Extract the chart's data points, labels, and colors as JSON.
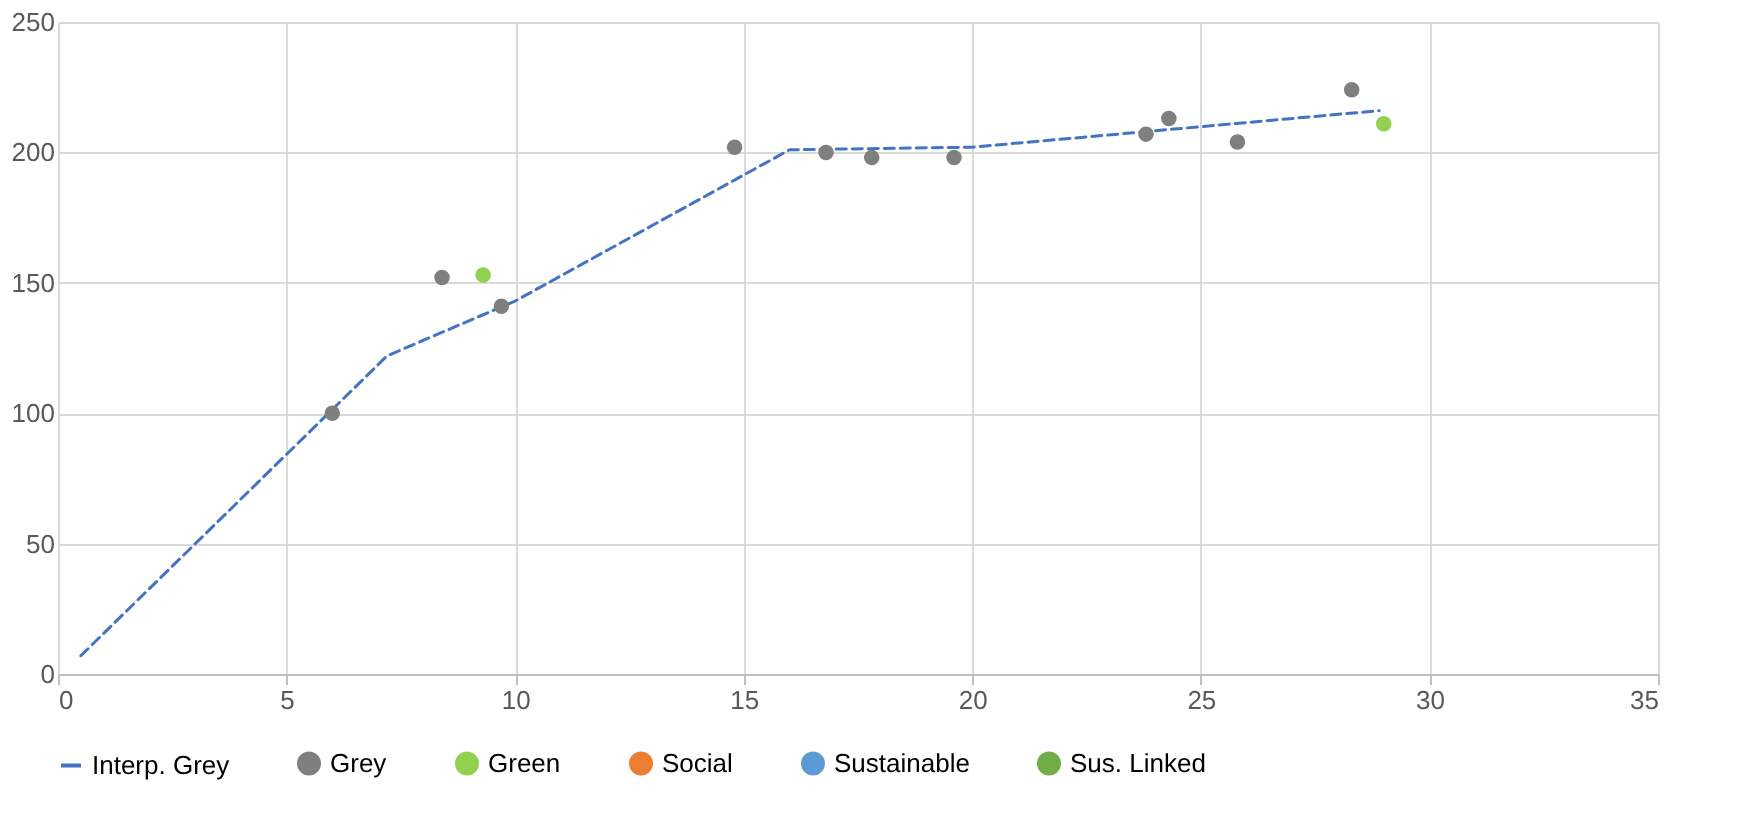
{
  "chart_data": {
    "type": "scatter",
    "series": [
      {
        "name": "Interp. Grey",
        "type": "line",
        "color": "#4472c4",
        "line_style": "dashed",
        "marker": "none",
        "x": [
          0.5,
          7.2,
          10,
          16,
          20,
          28.9
        ],
        "values": [
          7,
          122,
          143,
          201,
          202,
          216
        ]
      },
      {
        "name": "Grey",
        "color": "#7f7f7f",
        "x": [
          6.0,
          8.4,
          9.7,
          14.8,
          16.8,
          17.8,
          19.6,
          23.8,
          24.3,
          25.8,
          28.3
        ],
        "values": [
          100,
          152,
          141,
          202,
          200,
          198,
          198,
          207,
          213,
          204,
          224
        ]
      },
      {
        "name": "Green",
        "color": "#92d050",
        "x": [
          9.3,
          29.0
        ],
        "values": [
          153,
          211
        ]
      },
      {
        "name": "Social",
        "color": "#ed7d31"
      },
      {
        "name": "Sustainable",
        "color": "#5b9bd5"
      },
      {
        "name": "Sus. Linked",
        "color": "#70ad47"
      }
    ],
    "marker": "circle",
    "xlim": [
      0,
      35
    ],
    "xticks": [
      0,
      5,
      10,
      15,
      20,
      25,
      30,
      35
    ],
    "ylim": [
      0,
      250
    ],
    "yticks": [
      0,
      50,
      100,
      150,
      200,
      250
    ],
    "grid": true,
    "legend": "bottom"
  }
}
